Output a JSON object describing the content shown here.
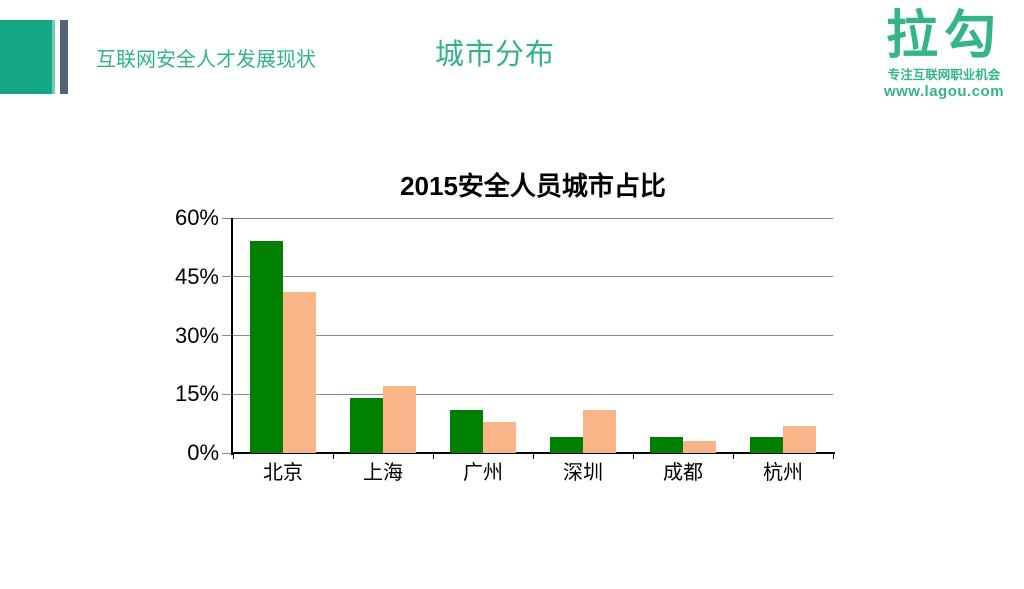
{
  "slide": {
    "header": {
      "section_label": "互联网安全人才发展现状",
      "page_title": "城市分布"
    },
    "logo": {
      "brand": "拉勾",
      "tagline": "专注互联网职业机会",
      "url": "www.lagou.com"
    }
  },
  "colors": {
    "header_green": "#32B289",
    "logo_green": "#33B588",
    "accent_teal_block": "#14A783",
    "accent_teal_edge": "#72CDB1",
    "accent_slate_bar": "#526478",
    "series_green": "#008000",
    "series_peach": "#F9B488",
    "gridline_gray": "#8C8C8C",
    "axis_black": "#000000",
    "background": "#FFFFFF"
  },
  "chart_data": {
    "type": "bar",
    "title": "2015安全人员城市占比",
    "categories": [
      "北京",
      "上海",
      "广州",
      "深圳",
      "成都",
      "杭州"
    ],
    "series": [
      {
        "name": "series-green",
        "color": "#008000",
        "values": [
          54,
          14,
          11,
          4,
          4,
          4
        ]
      },
      {
        "name": "series-peach",
        "color": "#F9B488",
        "values": [
          41,
          17,
          8,
          11,
          3,
          7
        ]
      }
    ],
    "unit": "%",
    "y_axis": {
      "min": 0,
      "max": 60,
      "tick_values": [
        0,
        15,
        30,
        45,
        60
      ],
      "tick_labels": [
        "0%",
        "15%",
        "30%",
        "45%",
        "60%"
      ]
    },
    "x_axis_label": "",
    "y_axis_label": "",
    "grid": true,
    "legend": false
  }
}
